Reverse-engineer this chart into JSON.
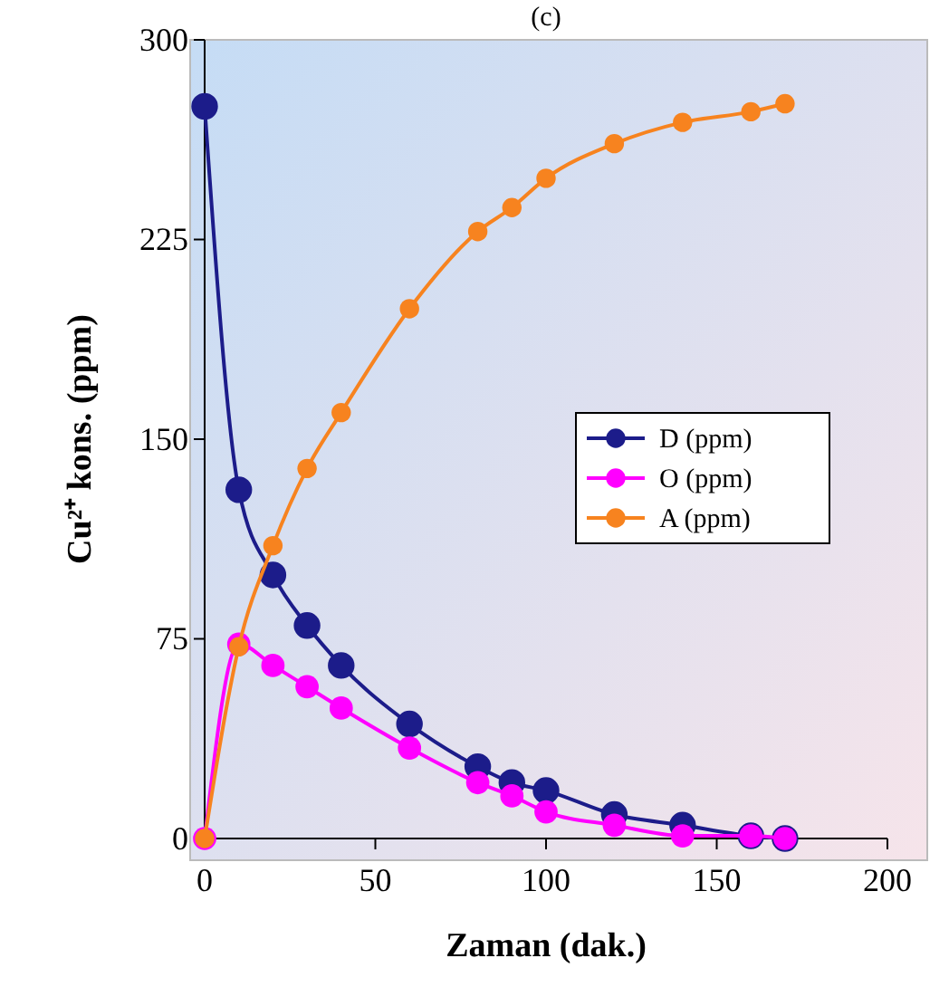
{
  "chart_data": {
    "type": "line",
    "title": "(c)",
    "xlabel": "Zaman (dak.)",
    "ylabel": "Cu²⁺ kons. (ppm)",
    "x": [
      0,
      10,
      20,
      30,
      40,
      60,
      80,
      90,
      100,
      120,
      140,
      160,
      170
    ],
    "series": [
      {
        "name": "D (ppm)",
        "color": "#1c1c8a",
        "values": [
          275,
          131,
          99,
          80,
          65,
          43,
          27,
          21,
          18,
          9,
          5,
          1,
          0
        ]
      },
      {
        "name": "O (ppm)",
        "color": "#ff00ff",
        "values": [
          0,
          73,
          65,
          57,
          49,
          34,
          21,
          16,
          10,
          5,
          1,
          1,
          0
        ]
      },
      {
        "name": "A (ppm)",
        "color": "#f7831f",
        "values": [
          0,
          72,
          110,
          139,
          160,
          199,
          228,
          237,
          248,
          261,
          269,
          273,
          276
        ]
      }
    ],
    "xlim": [
      0,
      200
    ],
    "xticks": [
      0,
      50,
      100,
      150,
      200
    ],
    "ylim": [
      0,
      300
    ],
    "yticks": [
      0,
      75,
      150,
      225,
      300
    ],
    "grid": false,
    "legend": "right",
    "marker": "circle",
    "line_style": "solid"
  }
}
